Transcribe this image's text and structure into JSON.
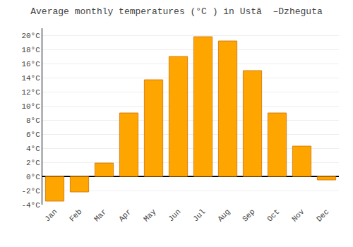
{
  "chart_data": {
    "type": "bar",
    "title": "Average monthly temperatures (°C ) in Ustâ  –Dzheguta",
    "categories": [
      "Jan",
      "Feb",
      "Mar",
      "Apr",
      "May",
      "Jun",
      "Jul",
      "Aug",
      "Sep",
      "Oct",
      "Nov",
      "Dec"
    ],
    "values": [
      -3.5,
      -2.2,
      1.9,
      9.0,
      13.7,
      17.0,
      19.8,
      19.2,
      15.0,
      9.0,
      4.3,
      -0.5
    ],
    "color": "#FFA500",
    "ylim": [
      -4,
      21
    ],
    "yticks": [
      {
        "value": -4,
        "label": "-4°C"
      },
      {
        "value": -2,
        "label": "-2°C"
      },
      {
        "value": 0,
        "label": "0°C"
      },
      {
        "value": 2,
        "label": "2°C"
      },
      {
        "value": 4,
        "label": "4°C"
      },
      {
        "value": 6,
        "label": "6°C"
      },
      {
        "value": 8,
        "label": "8°C"
      },
      {
        "value": 10,
        "label": "10°C"
      },
      {
        "value": 12,
        "label": "12°C"
      },
      {
        "value": 14,
        "label": "14°C"
      },
      {
        "value": 16,
        "label": "16°C"
      },
      {
        "value": 18,
        "label": "18°C"
      },
      {
        "value": 20,
        "label": "20°C"
      }
    ],
    "grid": true
  }
}
